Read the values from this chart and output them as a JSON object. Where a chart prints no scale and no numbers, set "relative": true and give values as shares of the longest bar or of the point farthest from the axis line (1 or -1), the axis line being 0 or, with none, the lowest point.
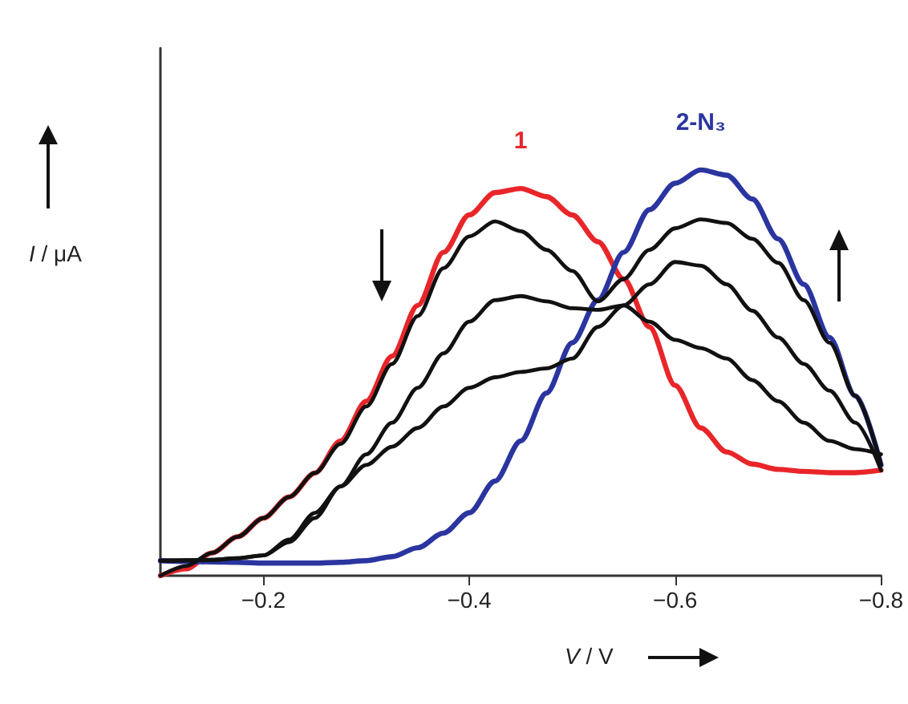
{
  "chart_data": {
    "type": "line",
    "relative": true,
    "xlabel": "V / V",
    "ylabel": "I / μA",
    "x": [
      -0.1,
      -0.125,
      -0.15,
      -0.175,
      -0.2,
      -0.225,
      -0.25,
      -0.275,
      -0.3,
      -0.325,
      -0.35,
      -0.375,
      -0.4,
      -0.425,
      -0.45,
      -0.475,
      -0.5,
      -0.525,
      -0.55,
      -0.575,
      -0.6,
      -0.625,
      -0.65,
      -0.675,
      -0.7,
      -0.725,
      -0.75,
      -0.775,
      -0.8
    ],
    "xlim": [
      -0.1,
      -0.8
    ],
    "xticks": [
      -0.2,
      -0.4,
      -0.6,
      -0.8
    ],
    "grid": false,
    "legend": false,
    "marker": "none",
    "line_style": "solid",
    "series": [
      {
        "name": "1",
        "color": "#e8262a",
        "values": [
          0,
          0.017,
          0.056,
          0.096,
          0.142,
          0.194,
          0.253,
          0.332,
          0.43,
          0.541,
          0.666,
          0.797,
          0.889,
          0.944,
          0.954,
          0.934,
          0.889,
          0.823,
          0.731,
          0.613,
          0.469,
          0.364,
          0.305,
          0.275,
          0.262,
          0.257,
          0.254,
          0.254,
          0.26
        ]
      },
      {
        "name": "2-N₃",
        "color": "#2b35a0",
        "values": [
          0.037,
          0.035,
          0.034,
          0.033,
          0.031,
          0.031,
          0.031,
          0.033,
          0.037,
          0.047,
          0.069,
          0.105,
          0.155,
          0.233,
          0.332,
          0.45,
          0.574,
          0.679,
          0.797,
          0.902,
          0.967,
          1,
          0.987,
          0.928,
          0.83,
          0.718,
          0.587,
          0.443,
          0.273
        ]
      },
      {
        "color": "#111111",
        "values": [
          0,
          0.024,
          0.056,
          0.096,
          0.142,
          0.194,
          0.253,
          0.325,
          0.417,
          0.522,
          0.64,
          0.758,
          0.836,
          0.873,
          0.849,
          0.803,
          0.751,
          0.676,
          0.731,
          0.803,
          0.856,
          0.878,
          0.869,
          0.83,
          0.771,
          0.679,
          0.574,
          0.443,
          0.273
        ]
      },
      {
        "color": "#111111",
        "values": [
          0.037,
          0.038,
          0.039,
          0.043,
          0.05,
          0.083,
          0.142,
          0.22,
          0.299,
          0.377,
          0.463,
          0.548,
          0.626,
          0.679,
          0.689,
          0.676,
          0.659,
          0.655,
          0.666,
          0.718,
          0.773,
          0.764,
          0.718,
          0.653,
          0.587,
          0.522,
          0.456,
          0.377,
          0.26
        ]
      },
      {
        "color": "#111111",
        "values": [
          0.037,
          0.038,
          0.039,
          0.043,
          0.05,
          0.089,
          0.155,
          0.22,
          0.273,
          0.318,
          0.364,
          0.417,
          0.463,
          0.489,
          0.502,
          0.511,
          0.535,
          0.613,
          0.666,
          0.626,
          0.581,
          0.561,
          0.535,
          0.482,
          0.43,
          0.377,
          0.332,
          0.312,
          0.299
        ]
      }
    ]
  }
}
